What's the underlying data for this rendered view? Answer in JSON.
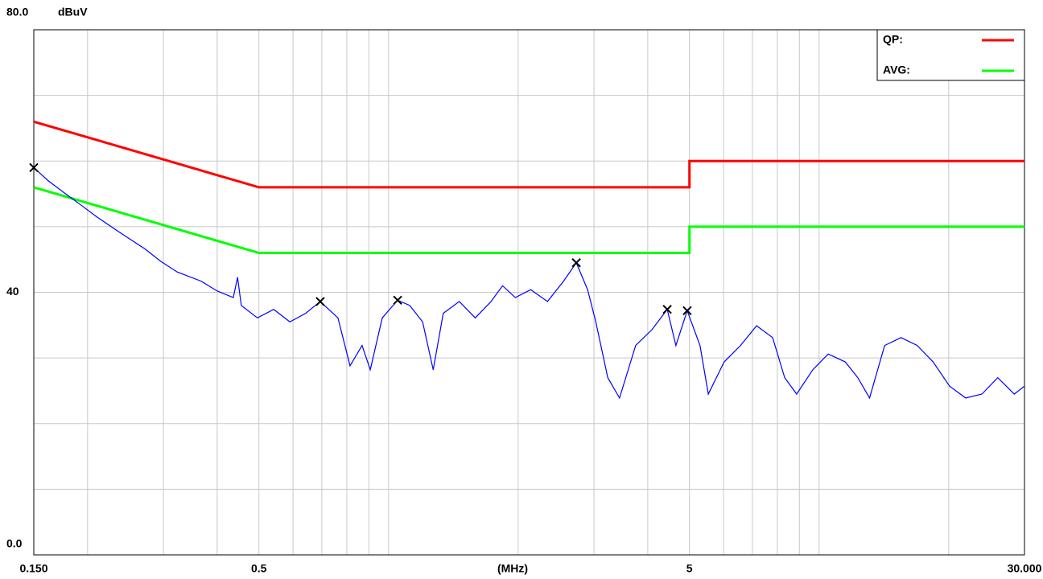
{
  "chart_data": {
    "type": "line",
    "y_label": "dBuV",
    "x_label": "(MHz)",
    "log_x": true,
    "grid": true,
    "legend": "upper right",
    "xlim": [
      0.15,
      30
    ],
    "ylim": [
      0,
      80
    ],
    "xticks": [
      {
        "value": 0.15,
        "label": "0.150"
      },
      0.5,
      5,
      {
        "value": 30,
        "label": "30.000"
      }
    ],
    "xgrid": [
      0.2,
      0.3,
      0.4,
      0.6,
      0.7,
      0.8,
      0.9,
      1,
      2,
      3,
      4,
      6,
      7,
      8,
      9,
      10,
      20
    ],
    "yticks": [
      {
        "value": 0,
        "label": "0.0"
      },
      40,
      {
        "value": 80,
        "label": "80.0"
      }
    ],
    "ygrid": [
      10,
      20,
      30,
      50,
      60,
      70
    ],
    "series": [
      {
        "name": "QP:",
        "color": "#ff0000",
        "x": [
          0.15,
          0.5,
          5,
          5,
          30
        ],
        "values": [
          66,
          56,
          56,
          60,
          60
        ]
      },
      {
        "name": "AVG:",
        "color": "#00ff00",
        "x": [
          0.15,
          0.5,
          5,
          5,
          30
        ],
        "values": [
          56,
          46,
          46,
          50,
          50
        ]
      },
      {
        "color": "#0000ff",
        "x": [
          0.15,
          0.162,
          0.177,
          0.193,
          0.21,
          0.239,
          0.272,
          0.296,
          0.323,
          0.367,
          0.4,
          0.436,
          0.446,
          0.455,
          0.496,
          0.541,
          0.59,
          0.642,
          0.694,
          0.763,
          0.814,
          0.868,
          0.907,
          0.967,
          1.05,
          1.12,
          1.2,
          1.27,
          1.34,
          1.46,
          1.59,
          1.73,
          1.84,
          1.97,
          2.14,
          2.34,
          2.55,
          2.73,
          2.9,
          3.03,
          3.23,
          3.44,
          3.75,
          4.09,
          4.44,
          4.65,
          4.94,
          5.29,
          5.53,
          6.02,
          6.57,
          7.16,
          7.8,
          8.32,
          8.87,
          9.67,
          10.5,
          11.5,
          12.3,
          13.1,
          14.2,
          15.5,
          16.9,
          18.4,
          20.1,
          21.9,
          23.9,
          26.0,
          28.4,
          30.0
        ],
        "values": [
          59.0,
          57.0,
          55.1,
          53.3,
          51.5,
          49.0,
          46.6,
          44.7,
          43.1,
          41.7,
          40.2,
          39.2,
          42.3,
          38.0,
          36.1,
          37.4,
          35.5,
          36.8,
          38.6,
          36.1,
          28.8,
          31.9,
          28.2,
          36.1,
          38.8,
          38.0,
          35.5,
          28.2,
          36.8,
          38.6,
          36.1,
          38.6,
          41.0,
          39.2,
          40.4,
          38.6,
          41.7,
          44.5,
          40.4,
          35.5,
          27.0,
          23.9,
          31.9,
          34.3,
          37.4,
          31.9,
          37.2,
          31.9,
          24.5,
          29.4,
          31.9,
          34.9,
          33.1,
          27.0,
          24.5,
          28.2,
          30.6,
          29.4,
          27.0,
          23.9,
          31.9,
          33.1,
          31.9,
          29.4,
          25.7,
          23.9,
          24.5,
          27.0,
          24.5,
          25.7
        ]
      }
    ],
    "markers": {
      "color": "#000000",
      "x": [
        0.15,
        0.694,
        1.05,
        2.73,
        4.44,
        4.94
      ],
      "values": [
        59.0,
        38.6,
        38.8,
        44.5,
        37.4,
        37.2
      ]
    }
  }
}
